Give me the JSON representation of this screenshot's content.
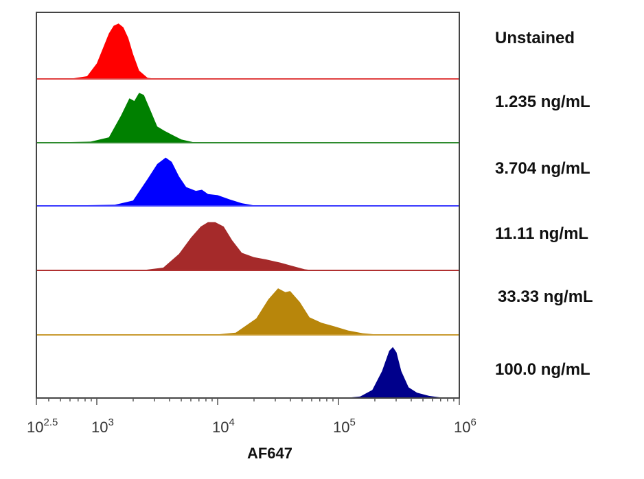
{
  "chart_data": {
    "type": "area",
    "title": "",
    "xlabel": "AF647",
    "ylabel": "",
    "x_scale": "log10",
    "xlim_log10": [
      2.5,
      6
    ],
    "xticks": [
      {
        "log": 2.5,
        "base": "10",
        "exp": "2.5"
      },
      {
        "log": 3,
        "base": "10",
        "exp": "3"
      },
      {
        "log": 4,
        "base": "10",
        "exp": "4"
      },
      {
        "log": 5,
        "base": "10",
        "exp": "5"
      },
      {
        "log": 6,
        "base": "10",
        "exp": "6"
      }
    ],
    "layout": "stacked offset histograms",
    "series": [
      {
        "name": "Unstained",
        "color": "#ff0000",
        "line_color": "#e04040",
        "points": [
          [
            2.5,
            0
          ],
          [
            2.8,
            0.01
          ],
          [
            2.92,
            0.05
          ],
          [
            3.0,
            0.28
          ],
          [
            3.05,
            0.55
          ],
          [
            3.1,
            0.82
          ],
          [
            3.14,
            0.96
          ],
          [
            3.18,
            1.0
          ],
          [
            3.22,
            0.93
          ],
          [
            3.26,
            0.74
          ],
          [
            3.3,
            0.45
          ],
          [
            3.35,
            0.15
          ],
          [
            3.42,
            0.02
          ],
          [
            3.5,
            0
          ],
          [
            6.0,
            0
          ]
        ]
      },
      {
        "name": "1.235 ng/mL",
        "color": "#008000",
        "line_color": "#2e8b2e",
        "points": [
          [
            2.5,
            0
          ],
          [
            2.95,
            0.02
          ],
          [
            3.1,
            0.1
          ],
          [
            3.2,
            0.5
          ],
          [
            3.27,
            0.82
          ],
          [
            3.31,
            0.77
          ],
          [
            3.35,
            0.92
          ],
          [
            3.39,
            0.88
          ],
          [
            3.44,
            0.62
          ],
          [
            3.5,
            0.3
          ],
          [
            3.56,
            0.22
          ],
          [
            3.62,
            0.15
          ],
          [
            3.7,
            0.06
          ],
          [
            3.8,
            0.01
          ],
          [
            3.9,
            0
          ],
          [
            6.0,
            0
          ]
        ]
      },
      {
        "name": "3.704 ng/mL",
        "color": "#0000ff",
        "line_color": "#3a3aff",
        "points": [
          [
            2.5,
            0
          ],
          [
            3.15,
            0.02
          ],
          [
            3.3,
            0.1
          ],
          [
            3.42,
            0.5
          ],
          [
            3.5,
            0.78
          ],
          [
            3.57,
            0.9
          ],
          [
            3.62,
            0.82
          ],
          [
            3.68,
            0.55
          ],
          [
            3.74,
            0.35
          ],
          [
            3.82,
            0.28
          ],
          [
            3.87,
            0.3
          ],
          [
            3.92,
            0.22
          ],
          [
            4.0,
            0.2
          ],
          [
            4.1,
            0.12
          ],
          [
            4.2,
            0.05
          ],
          [
            4.3,
            0.01
          ],
          [
            4.4,
            0
          ],
          [
            6.0,
            0
          ]
        ]
      },
      {
        "name": "11.11 ng/mL",
        "color": "#a52a2a",
        "line_color": "#b03030",
        "points": [
          [
            2.5,
            0
          ],
          [
            3.4,
            0.01
          ],
          [
            3.55,
            0.05
          ],
          [
            3.68,
            0.3
          ],
          [
            3.78,
            0.6
          ],
          [
            3.86,
            0.8
          ],
          [
            3.92,
            0.88
          ],
          [
            3.98,
            0.88
          ],
          [
            4.05,
            0.8
          ],
          [
            4.12,
            0.55
          ],
          [
            4.2,
            0.32
          ],
          [
            4.3,
            0.24
          ],
          [
            4.4,
            0.2
          ],
          [
            4.52,
            0.14
          ],
          [
            4.62,
            0.08
          ],
          [
            4.72,
            0.02
          ],
          [
            4.8,
            0
          ],
          [
            6.0,
            0
          ]
        ]
      },
      {
        "name": "33.33 ng/mL",
        "color": "#b8860b",
        "line_color": "#c89a30",
        "points": [
          [
            2.5,
            0
          ],
          [
            4.0,
            0.01
          ],
          [
            4.15,
            0.04
          ],
          [
            4.32,
            0.3
          ],
          [
            4.42,
            0.65
          ],
          [
            4.5,
            0.85
          ],
          [
            4.56,
            0.78
          ],
          [
            4.6,
            0.8
          ],
          [
            4.68,
            0.6
          ],
          [
            4.76,
            0.32
          ],
          [
            4.86,
            0.22
          ],
          [
            4.96,
            0.16
          ],
          [
            5.08,
            0.08
          ],
          [
            5.2,
            0.03
          ],
          [
            5.35,
            0
          ],
          [
            6.0,
            0
          ]
        ]
      },
      {
        "name": "100.0 ng/mL",
        "color": "#00008b",
        "line_color": "#000070",
        "points": [
          [
            2.5,
            0
          ],
          [
            5.05,
            0
          ],
          [
            5.18,
            0.03
          ],
          [
            5.28,
            0.15
          ],
          [
            5.36,
            0.5
          ],
          [
            5.42,
            0.88
          ],
          [
            5.45,
            0.95
          ],
          [
            5.48,
            0.85
          ],
          [
            5.52,
            0.5
          ],
          [
            5.58,
            0.2
          ],
          [
            5.65,
            0.1
          ],
          [
            5.75,
            0.04
          ],
          [
            5.85,
            0.01
          ],
          [
            5.92,
            0
          ],
          [
            6.0,
            0
          ]
        ]
      }
    ]
  }
}
